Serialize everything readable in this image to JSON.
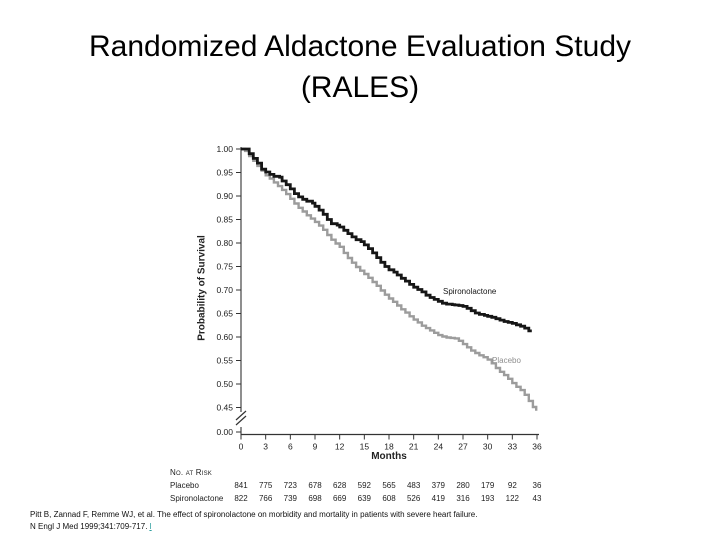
{
  "slide": {
    "title_line1": "Randomized Aldactone Evaluation Study",
    "title_line2": "(RALES)"
  },
  "chart_data": {
    "type": "line",
    "subtype": "kaplan-meier-survival",
    "title": "",
    "xlabel": "Months",
    "ylabel": "Probability of Survival",
    "xlim": [
      0,
      36
    ],
    "ylim_visible": [
      0.45,
      1.0
    ],
    "axis_break_to_zero": true,
    "zero_label": "0.00",
    "x_ticks": [
      0,
      3,
      6,
      9,
      12,
      15,
      18,
      21,
      24,
      27,
      30,
      33,
      36
    ],
    "y_ticks": [
      "1.00",
      "0.95",
      "0.90",
      "0.85",
      "0.80",
      "0.75",
      "0.70",
      "0.65",
      "0.60",
      "0.55",
      "0.50",
      "0.45"
    ],
    "grid": false,
    "legend": "inline-labels",
    "series": [
      {
        "name": "Spironolactone",
        "color": "#161616",
        "width": 2.8,
        "points": [
          [
            0,
            1.0
          ],
          [
            0.7,
            1.0
          ],
          [
            1,
            0.99
          ],
          [
            1.5,
            0.98
          ],
          [
            2,
            0.97
          ],
          [
            2.5,
            0.957
          ],
          [
            3,
            0.951
          ],
          [
            3.5,
            0.946
          ],
          [
            4,
            0.942
          ],
          [
            4.7,
            0.94
          ],
          [
            5,
            0.932
          ],
          [
            5.5,
            0.924
          ],
          [
            6,
            0.915
          ],
          [
            6.5,
            0.905
          ],
          [
            7,
            0.898
          ],
          [
            7.5,
            0.893
          ],
          [
            8,
            0.889
          ],
          [
            8.7,
            0.885
          ],
          [
            9,
            0.878
          ],
          [
            9.5,
            0.87
          ],
          [
            10,
            0.861
          ],
          [
            10.5,
            0.85
          ],
          [
            11,
            0.841
          ],
          [
            11.7,
            0.838
          ],
          [
            12,
            0.834
          ],
          [
            12.5,
            0.827
          ],
          [
            13,
            0.82
          ],
          [
            13.5,
            0.813
          ],
          [
            14,
            0.807
          ],
          [
            14.6,
            0.803
          ],
          [
            15,
            0.796
          ],
          [
            15.5,
            0.788
          ],
          [
            16,
            0.779
          ],
          [
            16.5,
            0.769
          ],
          [
            17,
            0.759
          ],
          [
            17.5,
            0.75
          ],
          [
            18,
            0.743
          ],
          [
            18.6,
            0.738
          ],
          [
            19,
            0.732
          ],
          [
            19.5,
            0.725
          ],
          [
            20,
            0.719
          ],
          [
            20.5,
            0.712
          ],
          [
            21,
            0.706
          ],
          [
            21.5,
            0.701
          ],
          [
            22,
            0.696
          ],
          [
            22.5,
            0.689
          ],
          [
            23,
            0.684
          ],
          [
            23.5,
            0.68
          ],
          [
            24,
            0.676
          ],
          [
            24.5,
            0.672
          ],
          [
            25,
            0.67
          ],
          [
            25.7,
            0.669
          ],
          [
            26,
            0.668
          ],
          [
            26.5,
            0.667
          ],
          [
            27,
            0.665
          ],
          [
            27.5,
            0.661
          ],
          [
            28,
            0.656
          ],
          [
            28.5,
            0.651
          ],
          [
            29,
            0.648
          ],
          [
            29.6,
            0.646
          ],
          [
            30,
            0.644
          ],
          [
            30.5,
            0.642
          ],
          [
            31,
            0.639
          ],
          [
            31.5,
            0.636
          ],
          [
            32,
            0.633
          ],
          [
            32.5,
            0.631
          ],
          [
            33,
            0.629
          ],
          [
            33.5,
            0.626
          ],
          [
            34,
            0.623
          ],
          [
            34.5,
            0.619
          ],
          [
            35,
            0.613
          ],
          [
            35.2,
            0.61
          ]
        ]
      },
      {
        "name": "Placebo",
        "color": "#9c9c9c",
        "width": 2.4,
        "points": [
          [
            0,
            1.0
          ],
          [
            0.5,
            0.996
          ],
          [
            1,
            0.985
          ],
          [
            1.5,
            0.975
          ],
          [
            2,
            0.964
          ],
          [
            2.5,
            0.954
          ],
          [
            3,
            0.944
          ],
          [
            3.5,
            0.937
          ],
          [
            4,
            0.929
          ],
          [
            4.5,
            0.921
          ],
          [
            5,
            0.913
          ],
          [
            5.5,
            0.904
          ],
          [
            6,
            0.894
          ],
          [
            6.5,
            0.884
          ],
          [
            7,
            0.875
          ],
          [
            7.5,
            0.867
          ],
          [
            8,
            0.859
          ],
          [
            8.5,
            0.852
          ],
          [
            9,
            0.845
          ],
          [
            9.5,
            0.837
          ],
          [
            10,
            0.828
          ],
          [
            10.5,
            0.817
          ],
          [
            11,
            0.807
          ],
          [
            11.5,
            0.799
          ],
          [
            12,
            0.792
          ],
          [
            12.5,
            0.779
          ],
          [
            13,
            0.768
          ],
          [
            13.5,
            0.758
          ],
          [
            14,
            0.749
          ],
          [
            14.5,
            0.741
          ],
          [
            15,
            0.734
          ],
          [
            15.5,
            0.726
          ],
          [
            16,
            0.717
          ],
          [
            16.5,
            0.709
          ],
          [
            17,
            0.699
          ],
          [
            17.5,
            0.69
          ],
          [
            18,
            0.682
          ],
          [
            18.5,
            0.675
          ],
          [
            19,
            0.667
          ],
          [
            19.5,
            0.659
          ],
          [
            20,
            0.652
          ],
          [
            20.5,
            0.644
          ],
          [
            21,
            0.637
          ],
          [
            21.5,
            0.631
          ],
          [
            22,
            0.624
          ],
          [
            22.5,
            0.619
          ],
          [
            23,
            0.614
          ],
          [
            23.5,
            0.609
          ],
          [
            24,
            0.604
          ],
          [
            24.5,
            0.601
          ],
          [
            25,
            0.599
          ],
          [
            25.5,
            0.598
          ],
          [
            26,
            0.597
          ],
          [
            26.5,
            0.592
          ],
          [
            27,
            0.585
          ],
          [
            27.5,
            0.578
          ],
          [
            28,
            0.571
          ],
          [
            28.5,
            0.566
          ],
          [
            29,
            0.561
          ],
          [
            29.5,
            0.557
          ],
          [
            30,
            0.552
          ],
          [
            30.5,
            0.544
          ],
          [
            31,
            0.534
          ],
          [
            31.5,
            0.526
          ],
          [
            32,
            0.519
          ],
          [
            32.5,
            0.511
          ],
          [
            33,
            0.502
          ],
          [
            33.5,
            0.494
          ],
          [
            34,
            0.487
          ],
          [
            34.5,
            0.477
          ],
          [
            35,
            0.464
          ],
          [
            35.5,
            0.451
          ],
          [
            35.9,
            0.443
          ]
        ]
      }
    ]
  },
  "risk_table": {
    "header": "No. at Risk",
    "rows": [
      {
        "label": "Placebo",
        "values": [
          841,
          775,
          723,
          678,
          628,
          592,
          565,
          483,
          379,
          280,
          179,
          92,
          36
        ]
      },
      {
        "label": "Spironolactone",
        "values": [
          822,
          766,
          739,
          698,
          669,
          639,
          608,
          526,
          419,
          316,
          193,
          122,
          43
        ]
      }
    ]
  },
  "citation": {
    "line1": "Pitt B, Zannad F, Remme WJ, et al. The effect of spironolactone on morbidity and mortality in patients with severe heart failure.",
    "line2": "N Engl J Med 1999;341:709-717.",
    "link_marker": "I",
    "link_color": "#2f9e9e"
  }
}
